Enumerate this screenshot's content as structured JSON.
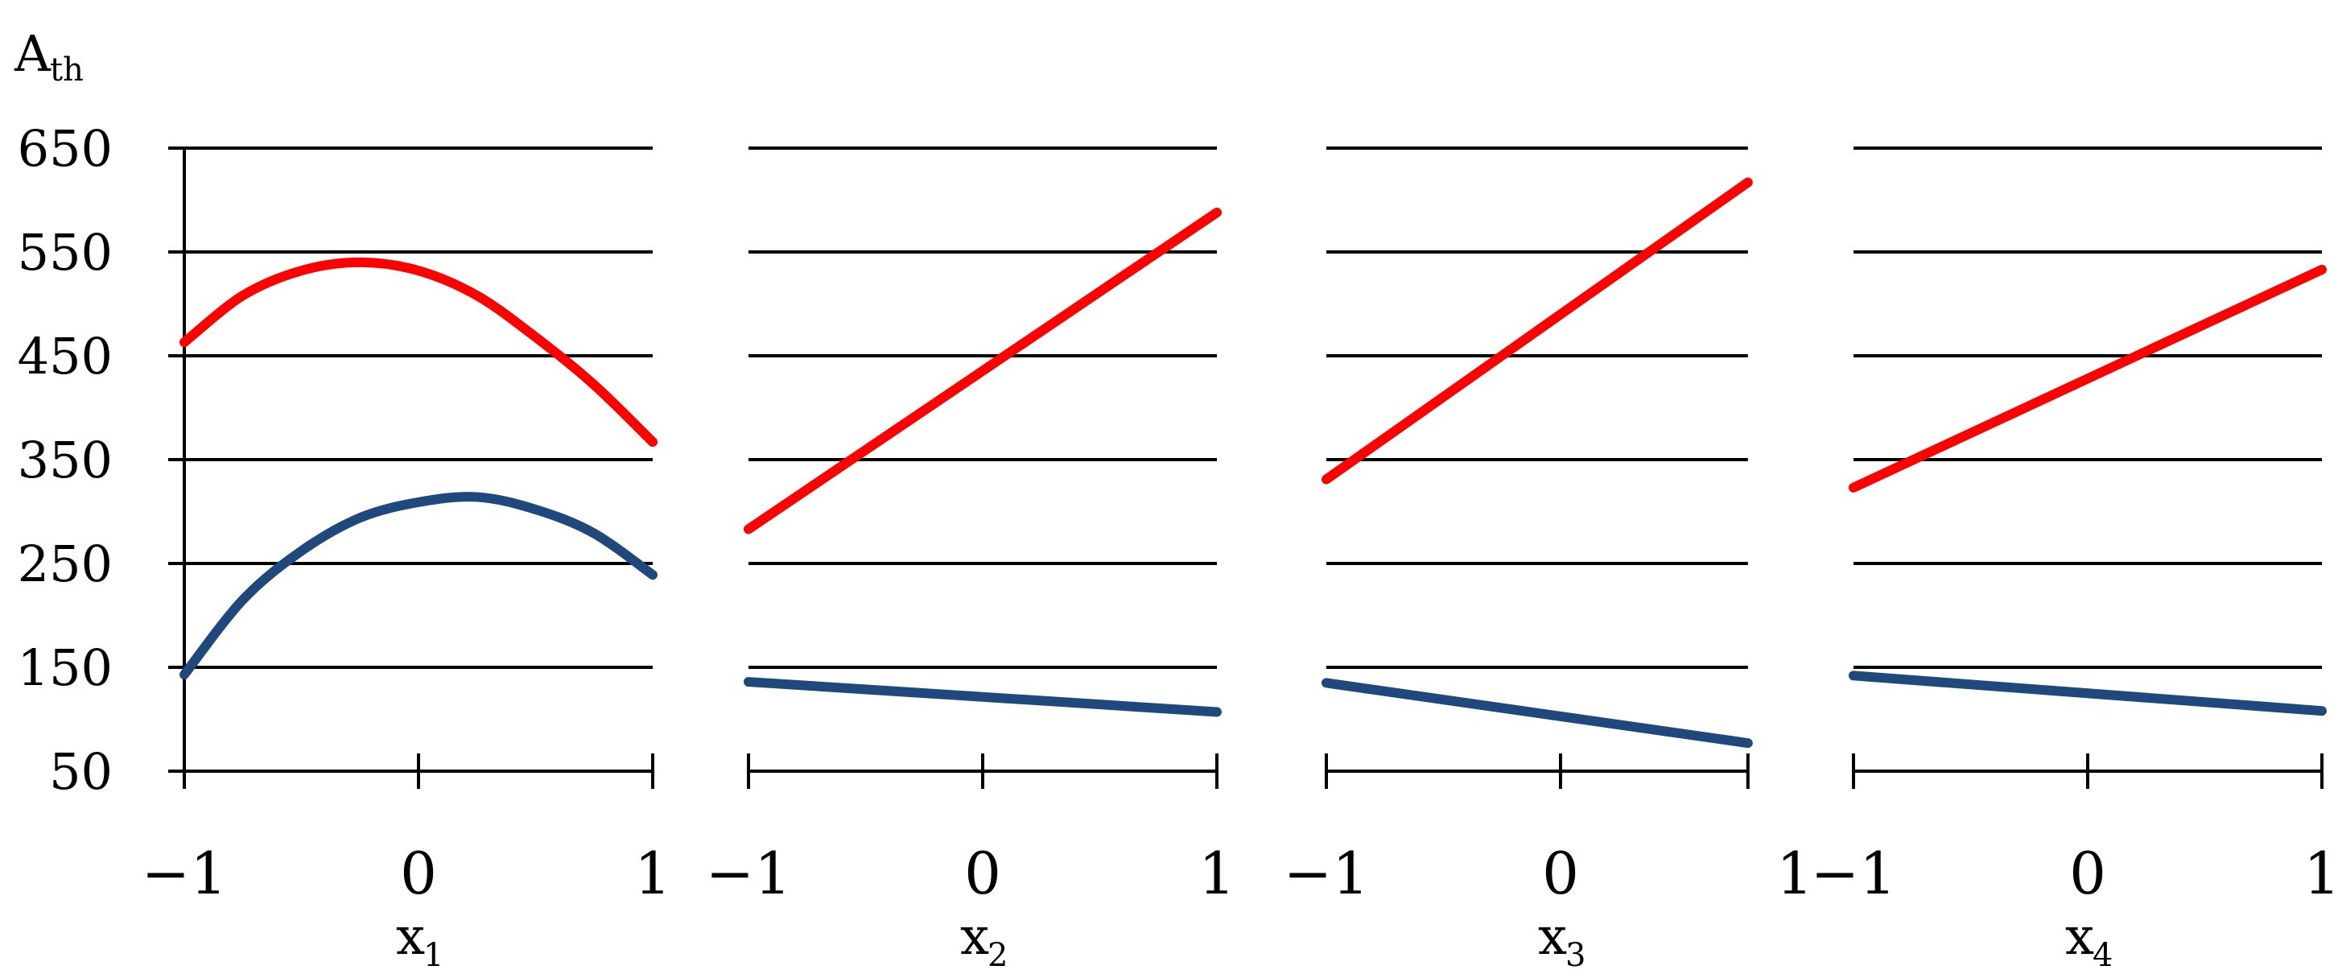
{
  "chart_data": {
    "type": "line",
    "ylabel": {
      "main": "A",
      "sub": "th"
    },
    "y_ticks": [
      "650",
      "550",
      "450",
      "350",
      "250",
      "150",
      "50"
    ],
    "ylim": [
      50,
      650
    ],
    "xlim": [
      -1,
      1
    ],
    "x_ticks": [
      "−1",
      "0",
      "1"
    ],
    "colors": {
      "upper": "#ff0000",
      "lower": "#1f497d"
    },
    "panels": [
      {
        "xlabel": {
          "main": "x",
          "sub": "1"
        },
        "series": [
          {
            "color": "upper",
            "x": [
              -1,
              -0.75,
              -0.5,
              -0.25,
              0,
              0.25,
              0.5,
              0.75,
              1
            ],
            "values": [
              463,
              508,
              532,
              540,
              532,
              508,
              468,
              422,
              367
            ]
          },
          {
            "color": "lower",
            "x": [
              -1,
              -0.75,
              -0.5,
              -0.25,
              0,
              0.25,
              0.5,
              0.75,
              1
            ],
            "values": [
              143,
              215,
              262,
              294,
              309,
              314,
              302,
              279,
              239
            ]
          }
        ]
      },
      {
        "xlabel": {
          "main": "x",
          "sub": "2"
        },
        "series": [
          {
            "color": "upper",
            "x": [
              -1,
              1
            ],
            "values": [
              283,
              588
            ]
          },
          {
            "color": "lower",
            "x": [
              -1,
              1
            ],
            "values": [
              136,
              107
            ]
          }
        ]
      },
      {
        "xlabel": {
          "main": "x",
          "sub": "3"
        },
        "x_end": 0.8,
        "series": [
          {
            "color": "upper",
            "x": [
              -1,
              0.8
            ],
            "values": [
              331,
              617
            ]
          },
          {
            "color": "lower",
            "x": [
              -1,
              0.8
            ],
            "values": [
              135,
              77
            ]
          }
        ]
      },
      {
        "xlabel": {
          "main": "x",
          "sub": "4"
        },
        "series": [
          {
            "color": "upper",
            "x": [
              -1,
              1
            ],
            "values": [
              323,
              533
            ]
          },
          {
            "color": "lower",
            "x": [
              -1,
              1
            ],
            "values": [
              142,
              108
            ]
          }
        ]
      }
    ]
  }
}
